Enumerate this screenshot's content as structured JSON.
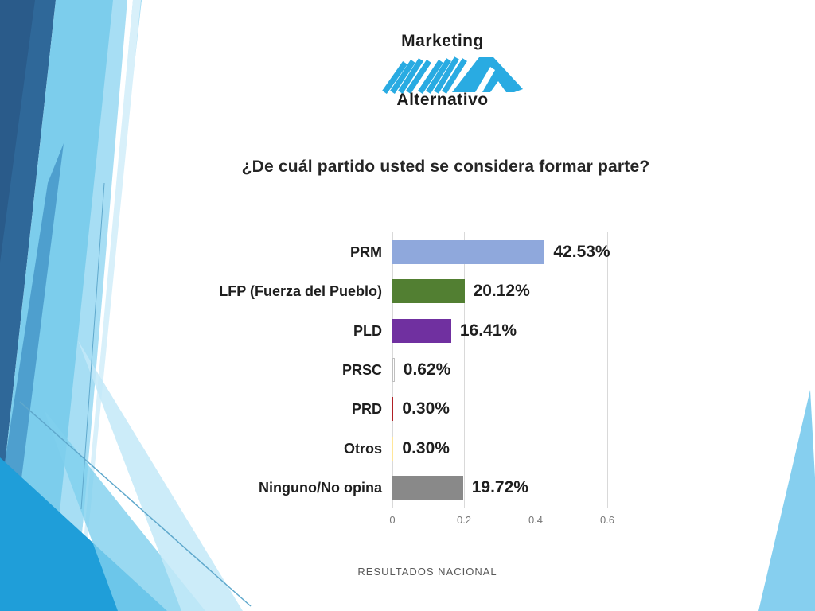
{
  "logo": {
    "top_text": "Marketing",
    "bottom_text": "Alternativo",
    "mark_color": "#29ABE2",
    "text_color": "#1D1D1D"
  },
  "footer": {
    "caption": "RESULTADOS NACIONAL"
  },
  "decor_palette": {
    "dark_blue": "#2F6899",
    "darker_blue": "#2A5B8A",
    "mid_blue": "#4796C9",
    "bright_blue": "#1F9ED9",
    "light_blue": "#7CCDEC",
    "pale_blue": "#A7DEF4",
    "right_wedge_blue": "#86CFEF"
  },
  "chart_data": {
    "type": "bar",
    "orientation": "horizontal",
    "title": "¿De cuál partido usted se considera formar parte?",
    "categories": [
      "PRM",
      "LFP (Fuerza del Pueblo)",
      "PLD",
      "PRSC",
      "PRD",
      "Otros",
      "Ninguno/No opina"
    ],
    "values": [
      42.53,
      20.12,
      16.41,
      0.62,
      0.3,
      0.3,
      19.72
    ],
    "value_labels": [
      "42.53%",
      "20.12%",
      "16.41%",
      "0.62%",
      "0.30%",
      "0.30%",
      "19.72%"
    ],
    "bar_colors": [
      "#8FA8DC",
      "#527F32",
      "#7030A0",
      "#FFFFFF",
      "#B02025",
      "#FFE699",
      "#898989"
    ],
    "bar_border_colors": [
      "none",
      "none",
      "none",
      "#BFBFBF",
      "none",
      "none",
      "none"
    ],
    "x_tick_labels": [
      "0",
      "0.2",
      "0.4",
      "0.6"
    ],
    "x_tick_values": [
      0,
      0.2,
      0.4,
      0.6
    ],
    "xlim": [
      0,
      0.6667
    ],
    "grid": true,
    "legend": false,
    "axis_color": "#D9D9D9",
    "tick_label_color": "#777777",
    "label_color": "#1E1E1E"
  }
}
